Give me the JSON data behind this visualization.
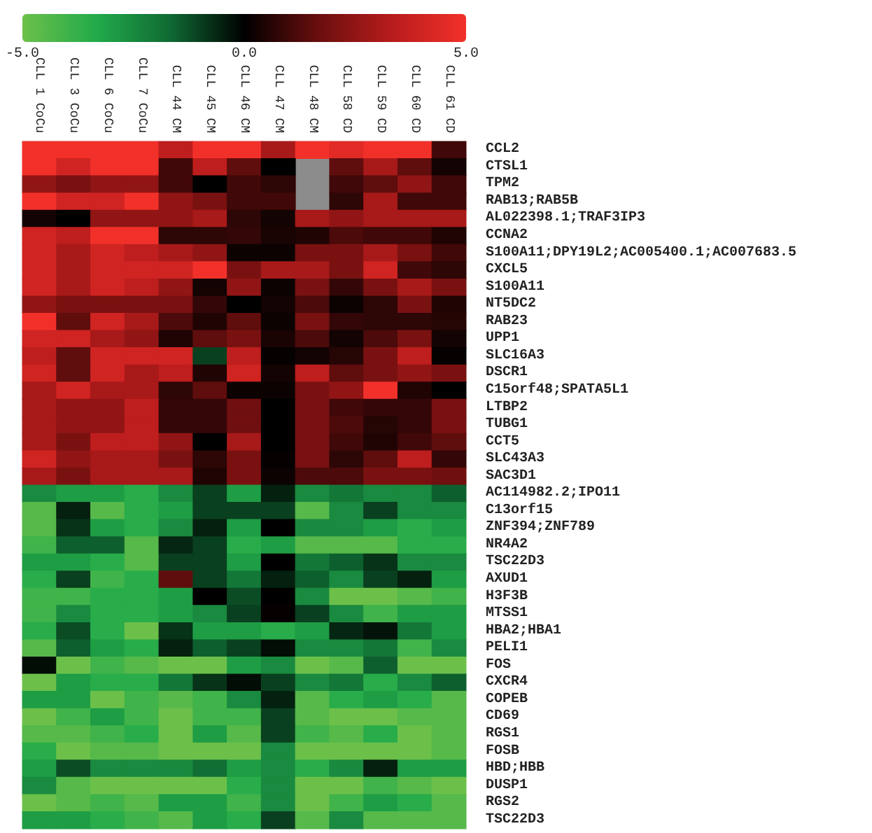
{
  "chart_data": {
    "type": "heatmap",
    "categories": [
      "CLL 1 CoCu",
      "CLL 3 CoCu",
      "CLL 6 CoCu",
      "CLL 7 CoCu",
      "CLL 44 CM",
      "CLL 45 CM",
      "CLL 46 CM",
      "CLL 47 CM",
      "CLL 48 CM",
      "CLL 58 CD",
      "CLL 59 CD",
      "CLL 60 CD",
      "CLL 61 CD"
    ],
    "y_categories": [
      "CCL2",
      "CTSL1",
      "TPM2",
      "RAB13;RAB5B",
      "AL022398.1;TRAF3IP3",
      "CCNA2",
      "S100A11;DPY19L2;AC005400.1;AC007683.5",
      "CXCL5",
      "S100A11",
      "NT5DC2",
      "RAB23",
      "UPP1",
      "SLC16A3",
      "DSCR1",
      "C15orf48;SPATA5L1",
      "LTBP2",
      "TUBG1",
      "CCT5",
      "SLC43A3",
      "SAC3D1",
      "AC114982.2;IPO11",
      "C13orf15",
      "ZNF394;ZNF789",
      "NR4A2",
      "TSC22D3",
      "AXUD1",
      "H3F3B",
      "MTSS1",
      "HBA2;HBA1",
      "PELI1",
      "FOS",
      "CXCR4",
      "COPEB",
      "CD69",
      "RGS1",
      "FOSB",
      "HBD;HBB",
      "DUSP1",
      "RGS2",
      "TSC22D3"
    ],
    "cells": [
      [
        5,
        5,
        5,
        5,
        3.5,
        5,
        5,
        3,
        5,
        4.5,
        5,
        5,
        1
      ],
      [
        5,
        4,
        5,
        5,
        1,
        3.5,
        1.5,
        0,
        null,
        1.5,
        3,
        1.5,
        0.3
      ],
      [
        2.5,
        2,
        2.5,
        2.5,
        1,
        0,
        1,
        0.7,
        null,
        1,
        1.5,
        2.5,
        1
      ],
      [
        5,
        4,
        4,
        5,
        2.5,
        2,
        1,
        1,
        null,
        0.7,
        3,
        1,
        1
      ],
      [
        0.3,
        0,
        2.5,
        2.5,
        2.5,
        3,
        0.7,
        0.3,
        3,
        2.5,
        3,
        3,
        3
      ],
      [
        4,
        3.5,
        5,
        5,
        0.7,
        0.7,
        0.8,
        0.4,
        0.5,
        1.2,
        1,
        1,
        0.5
      ],
      [
        4,
        3,
        4,
        3.5,
        3,
        2.5,
        0.2,
        0.2,
        2,
        2,
        3,
        2,
        1
      ],
      [
        4,
        3,
        4,
        4,
        4,
        5,
        2,
        3,
        3,
        2,
        4,
        1,
        0.7
      ],
      [
        4,
        3,
        4,
        3.5,
        2.5,
        0.3,
        2.5,
        0.2,
        2,
        0.8,
        2,
        3,
        2
      ],
      [
        2.5,
        2,
        2,
        2,
        2,
        0.8,
        0,
        0.3,
        1.2,
        0.2,
        0.7,
        2,
        0.5
      ],
      [
        5,
        1.5,
        4,
        3,
        1.2,
        0.5,
        1.5,
        0.2,
        2,
        0.8,
        0.7,
        0.7,
        0.6
      ],
      [
        4,
        4,
        3,
        2.5,
        0.5,
        1.5,
        2,
        0.4,
        1.2,
        0.3,
        1.2,
        2,
        0.3
      ],
      [
        3.5,
        1.5,
        4,
        4,
        4,
        -1,
        3.5,
        0.1,
        0.3,
        0.6,
        2,
        3.5,
        0.1
      ],
      [
        4,
        1.5,
        4,
        3,
        3.5,
        0.5,
        4,
        0.3,
        3.5,
        1.5,
        2,
        2.5,
        2
      ],
      [
        3,
        4,
        3,
        3,
        0.7,
        1.5,
        0.2,
        0.2,
        2,
        2.5,
        5,
        0.5,
        0
      ],
      [
        3,
        2.5,
        2.5,
        3.5,
        0.8,
        0.8,
        1.8,
        0,
        2,
        1,
        0.8,
        0.8,
        2
      ],
      [
        3,
        2.5,
        2.5,
        3.5,
        0.8,
        0.8,
        1.8,
        0,
        2,
        1.2,
        0.6,
        0.8,
        2
      ],
      [
        3,
        2,
        3.5,
        3.5,
        2.5,
        0,
        3,
        0,
        2,
        1,
        0.5,
        1,
        1.5
      ],
      [
        4,
        2.5,
        3,
        3,
        2,
        0.7,
        2,
        0.1,
        2,
        0.7,
        1.5,
        3.5,
        0.8
      ],
      [
        3,
        2,
        3,
        3,
        3,
        0.5,
        2,
        0.2,
        1.2,
        1.2,
        2,
        2,
        1.8
      ],
      [
        -2.5,
        -3,
        -3,
        -3.5,
        -2.5,
        -1,
        -3,
        -0.5,
        -2.5,
        -2,
        -2.5,
        -2.5,
        -1.5
      ],
      [
        -4.5,
        -0.5,
        -4.5,
        -3.5,
        -3,
        -1,
        -1,
        -1,
        -4.5,
        -2.5,
        -1,
        -2.5,
        -2.5
      ],
      [
        -4.5,
        -0.8,
        -3,
        -3.5,
        -2.5,
        -0.5,
        -3,
        0,
        -2.5,
        -2.5,
        -3,
        -3.5,
        -3
      ],
      [
        -4,
        -1.5,
        -1.5,
        -4.5,
        -0.6,
        -1,
        -3.5,
        -3,
        -4.5,
        -4.5,
        -4.5,
        -3.5,
        -3.5
      ],
      [
        -3,
        -3,
        -3.5,
        -4.5,
        -1,
        -1,
        -3,
        0,
        -2,
        -1.5,
        -0.8,
        -2.5,
        -2.5
      ],
      [
        -3.5,
        -1,
        -4,
        -3.5,
        1.5,
        -1,
        -2,
        -0.5,
        -1.5,
        -2.5,
        -1,
        -0.5,
        -3
      ],
      [
        -4,
        -4,
        -3.5,
        -3.5,
        -3,
        0,
        -1.2,
        0,
        -2.5,
        -5,
        -5,
        -4.5,
        -4
      ],
      [
        -4,
        -2.5,
        -3.5,
        -3.5,
        -3,
        -2.5,
        -1,
        0.1,
        -1,
        -2.5,
        -4,
        -3,
        -3
      ],
      [
        -3.5,
        -1.2,
        -3.5,
        -5,
        -0.8,
        -3,
        -3,
        -3.5,
        -3,
        -0.6,
        -0.3,
        -2,
        -3
      ],
      [
        -4.5,
        -1.5,
        -3,
        -3.5,
        -0.5,
        -1.5,
        -1,
        -0.2,
        -2.5,
        -2.5,
        -2,
        -4,
        -2.5
      ],
      [
        -0.2,
        -5,
        -4,
        -4.5,
        -5,
        -5,
        -3,
        -2.5,
        -5,
        -4.5,
        -1.5,
        -5,
        -5
      ],
      [
        -5,
        -3,
        -3.5,
        -3.5,
        -2,
        -0.8,
        -0.2,
        -1,
        -2.5,
        -2,
        -3.5,
        -2.5,
        -1.5
      ],
      [
        -3,
        -3,
        -5,
        -4,
        -4.5,
        -4,
        -2.5,
        -0.5,
        -4.5,
        -3.5,
        -3,
        -3.5,
        -4.5
      ],
      [
        -5,
        -4,
        -3,
        -4,
        -5,
        -4,
        -4,
        -1,
        -4.5,
        -5,
        -5,
        -4.5,
        -4.5
      ],
      [
        -4.5,
        -4.5,
        -4,
        -3.5,
        -5,
        -3,
        -4.5,
        -1,
        -4,
        -4.5,
        -3.5,
        -5,
        -4.5
      ],
      [
        -3.5,
        -5,
        -4.5,
        -4.5,
        -5,
        -5,
        -5,
        -2.5,
        -5,
        -5,
        -5,
        -5,
        -4.5
      ],
      [
        -3,
        -1.2,
        -2.5,
        -2.5,
        -2.5,
        -1.8,
        -3,
        -2.5,
        -3.5,
        -2.5,
        -0.5,
        -3,
        -3
      ],
      [
        -2.5,
        -4.5,
        -5,
        -5,
        -5,
        -5,
        -3.5,
        -2.5,
        -5,
        -5,
        -4,
        -4.5,
        -5
      ],
      [
        -5,
        -4.5,
        -4,
        -4.5,
        -3,
        -3,
        -4,
        -2.5,
        -5,
        -4,
        -3,
        -3.5,
        -4.5
      ],
      [
        -3,
        -3,
        -3.5,
        -4,
        -4.5,
        -3,
        -3.5,
        -1,
        -4.5,
        -2.5,
        -4.5,
        -4.5,
        -4.5
      ]
    ],
    "clim": [
      -5,
      5
    ],
    "cticks": [
      {
        "value": -5,
        "label": "-5.0"
      },
      {
        "value": 0,
        "label": "0.0"
      },
      {
        "value": 5,
        "label": "5.0"
      }
    ]
  }
}
